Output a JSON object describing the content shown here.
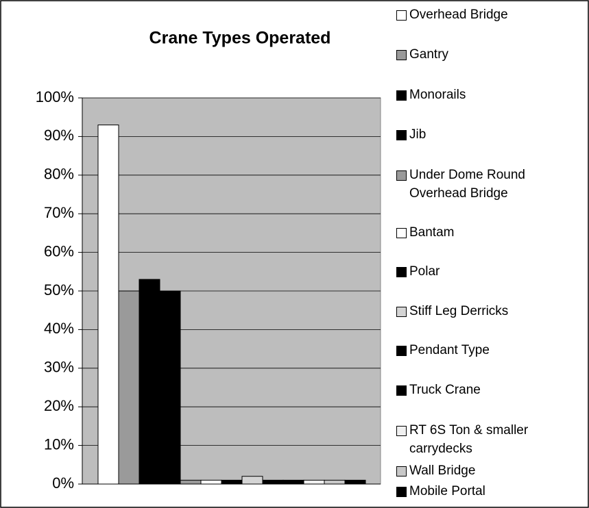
{
  "chart_data": {
    "type": "bar",
    "title": "Crane Types Operated",
    "categories": [
      null
    ],
    "series": [
      {
        "name": "Overhead Bridge",
        "color": "#ffffff",
        "values": [
          93
        ]
      },
      {
        "name": "Gantry",
        "color": "#9a9a9a",
        "values": [
          50
        ]
      },
      {
        "name": "Monorails",
        "color": "#000000",
        "values": [
          53
        ]
      },
      {
        "name": "Jib",
        "color": "#000000",
        "values": [
          50
        ]
      },
      {
        "name": "Under Dome Round Overhead Bridge",
        "color": "#9a9a9a",
        "values": [
          1
        ]
      },
      {
        "name": "Bantam",
        "color": "#ffffff",
        "values": [
          1
        ]
      },
      {
        "name": "Polar",
        "color": "#000000",
        "values": [
          1
        ]
      },
      {
        "name": "Stiff Leg Derricks",
        "color": "#d4d4d4",
        "values": [
          2
        ]
      },
      {
        "name": "Pendant Type",
        "color": "#000000",
        "values": [
          1
        ]
      },
      {
        "name": "Truck Crane",
        "color": "#000000",
        "values": [
          1
        ]
      },
      {
        "name": "RT 6S Ton & smaller carrydecks",
        "color": "#f0f0f0",
        "values": [
          1
        ]
      },
      {
        "name": "Wall Bridge",
        "color": "#c8c8c8",
        "values": [
          1
        ]
      },
      {
        "name": "Mobile Portal",
        "color": "#000000",
        "values": [
          1
        ]
      }
    ],
    "ylim": [
      0,
      100
    ],
    "yticks": [
      {
        "value": 0,
        "label": "0%"
      },
      {
        "value": 10,
        "label": "10%"
      },
      {
        "value": 20,
        "label": "20%"
      },
      {
        "value": 30,
        "label": "30%"
      },
      {
        "value": 40,
        "label": "40%"
      },
      {
        "value": 50,
        "label": "50%"
      },
      {
        "value": 60,
        "label": "60%"
      },
      {
        "value": 70,
        "label": "70%"
      },
      {
        "value": 80,
        "label": "80%"
      },
      {
        "value": 90,
        "label": "90%"
      },
      {
        "value": 100,
        "label": "100%"
      }
    ],
    "grid": true,
    "legend": "right"
  }
}
